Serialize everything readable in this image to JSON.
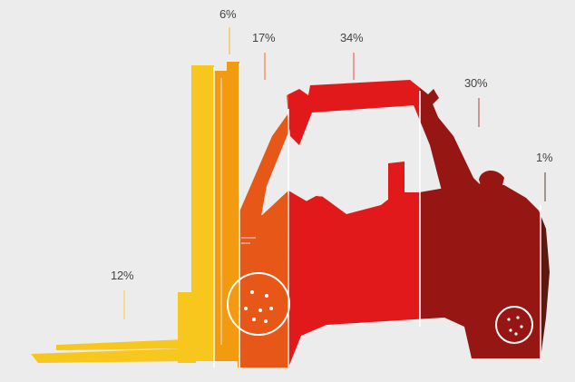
{
  "labels": {
    "fork": "12%",
    "mast": "6%",
    "carriage": "17%",
    "cabin": "34%",
    "counterweight": "30%",
    "rear": "1%"
  },
  "shares": {
    "fork": 12,
    "mast": 6,
    "carriage": 17,
    "cabin": 34,
    "counterweight": 30,
    "rear": 1
  },
  "colors": {
    "background": "#ececec",
    "fork": "#f7c71e",
    "mast": "#f29a10",
    "carriage": "#e65718",
    "cabin": "#e1191b",
    "counterweight": "#961614",
    "rear": "#5e1810",
    "wheel_line": "#ffffff",
    "label_text": "#444444"
  },
  "icons": {
    "front-wheel": "wheel-icon",
    "rear-wheel": "wheel-icon",
    "steering-wheel": "steering-wheel-icon",
    "driver": "person-silhouette"
  }
}
